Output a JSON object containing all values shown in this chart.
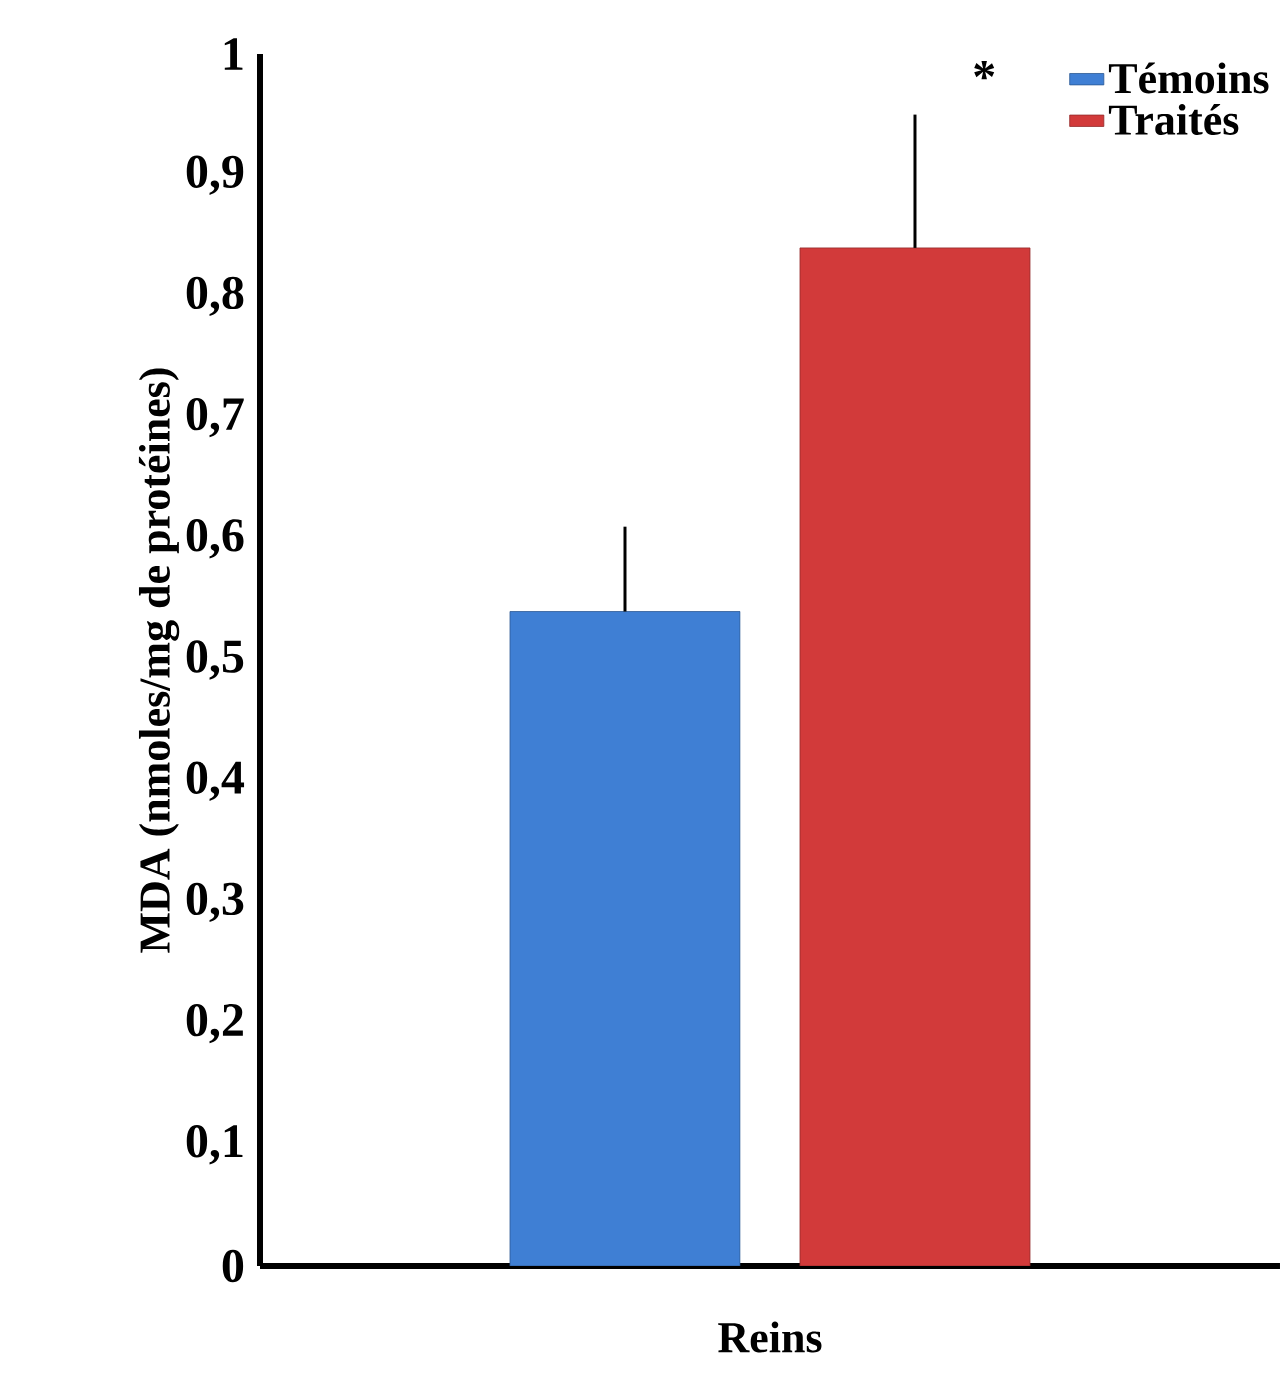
{
  "chart_data": {
    "type": "bar",
    "ylabel": "MDA (nmoles/mg de protéines)",
    "categories": [
      "Reins"
    ],
    "series": [
      {
        "name": "Témoins",
        "color": "#3f7fd4",
        "values": [
          0.54
        ],
        "errors": [
          [
            0.54,
            0.61
          ]
        ]
      },
      {
        "name": "Traités",
        "color": "#d23a3a",
        "values": [
          0.84
        ],
        "errors": [
          [
            0.84,
            0.95
          ]
        ]
      }
    ],
    "ylim": [
      0,
      1
    ],
    "yticks": [
      0,
      {
        "value": 0.1,
        "label": "0,1"
      },
      {
        "value": 0.2,
        "label": "0,2"
      },
      {
        "value": 0.3,
        "label": "0,3"
      },
      {
        "value": 0.4,
        "label": "0,4"
      },
      {
        "value": 0.5,
        "label": "0,5"
      },
      {
        "value": 0.6,
        "label": "0,6"
      },
      {
        "value": 0.7,
        "label": "0,7"
      },
      {
        "value": 0.8,
        "label": "0,8"
      },
      {
        "value": 0.9,
        "label": "0,9"
      },
      1
    ],
    "annotations": [
      "*"
    ],
    "grid": false,
    "legend": "top right"
  }
}
